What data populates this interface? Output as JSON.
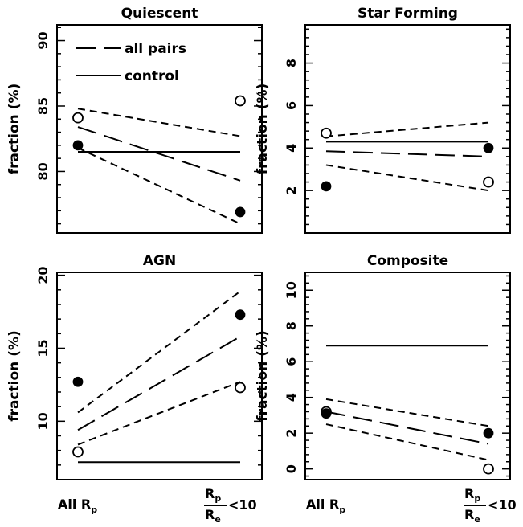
{
  "chart_data": [
    {
      "type": "line",
      "title": "Quiescent",
      "ylabel": "fraction (%)",
      "ylim": [
        75.3,
        91.2
      ],
      "yticks": [
        80,
        85,
        90
      ],
      "categories": [
        "All Rp",
        "Rp/Re < 10"
      ],
      "legend": {
        "position": "top-left",
        "entries": [
          "all pairs",
          "control"
        ]
      },
      "series": [
        {
          "name": "all pairs",
          "style": "long-dash",
          "values": [
            83.4,
            79.3
          ]
        },
        {
          "style": "short-dash",
          "values": [
            84.8,
            82.7
          ]
        },
        {
          "style": "short-dash",
          "values": [
            81.8,
            76.0
          ]
        },
        {
          "name": "control",
          "style": "solid",
          "values": [
            81.5,
            81.5
          ]
        }
      ],
      "points": [
        {
          "marker": "open-circle",
          "values": [
            84.1,
            85.4
          ]
        },
        {
          "marker": "filled-circle",
          "values": [
            82.0,
            76.9
          ]
        }
      ]
    },
    {
      "type": "line",
      "title": "Star Forming",
      "ylabel": "fraction (%)",
      "ylim": [
        0.0,
        9.8
      ],
      "yticks": [
        2,
        4,
        6,
        8
      ],
      "categories": [
        "All Rp",
        "Rp/Re < 10"
      ],
      "series": [
        {
          "style": "long-dash",
          "values": [
            3.85,
            3.6
          ]
        },
        {
          "style": "short-dash",
          "values": [
            4.55,
            5.2
          ]
        },
        {
          "style": "short-dash",
          "values": [
            3.2,
            2.0
          ]
        },
        {
          "style": "solid",
          "values": [
            4.3,
            4.3
          ]
        }
      ],
      "points": [
        {
          "marker": "open-circle",
          "values": [
            4.7,
            2.4
          ]
        },
        {
          "marker": "filled-circle",
          "values": [
            2.2,
            4.0
          ]
        }
      ]
    },
    {
      "type": "line",
      "title": "AGN",
      "ylabel": "fraction (%)",
      "ylim": [
        6.0,
        20.2
      ],
      "yticks": [
        10,
        15,
        20
      ],
      "categories": [
        "All Rp",
        "Rp/Re < 10"
      ],
      "series": [
        {
          "style": "long-dash",
          "values": [
            9.4,
            15.8
          ]
        },
        {
          "style": "short-dash",
          "values": [
            10.6,
            18.9
          ]
        },
        {
          "style": "short-dash",
          "values": [
            8.4,
            12.7
          ]
        },
        {
          "style": "solid",
          "values": [
            7.2,
            7.2
          ]
        }
      ],
      "points": [
        {
          "marker": "open-circle",
          "values": [
            7.9,
            12.3
          ]
        },
        {
          "marker": "filled-circle",
          "values": [
            12.7,
            17.3
          ]
        }
      ]
    },
    {
      "type": "line",
      "title": "Composite",
      "ylabel": "fraction (%)",
      "ylim": [
        -0.6,
        11.0
      ],
      "yticks": [
        0,
        2,
        4,
        6,
        8,
        10
      ],
      "categories": [
        "All Rp",
        "Rp/Re < 10"
      ],
      "series": [
        {
          "style": "long-dash",
          "values": [
            3.2,
            1.4
          ]
        },
        {
          "style": "short-dash",
          "values": [
            3.9,
            2.4
          ]
        },
        {
          "style": "short-dash",
          "values": [
            2.5,
            0.5
          ]
        },
        {
          "style": "solid",
          "values": [
            6.9,
            6.9
          ]
        }
      ],
      "points": [
        {
          "marker": "open-circle",
          "values": [
            3.2,
            0.0
          ]
        },
        {
          "marker": "filled-circle",
          "values": [
            3.1,
            2.0
          ]
        }
      ]
    }
  ],
  "xaxis": {
    "left_label": {
      "main": "All R",
      "sub": "p"
    },
    "right_label": {
      "num": "R",
      "num_sub": "p",
      "den": "R",
      "den_sub": "e",
      "rel": "<10"
    }
  }
}
